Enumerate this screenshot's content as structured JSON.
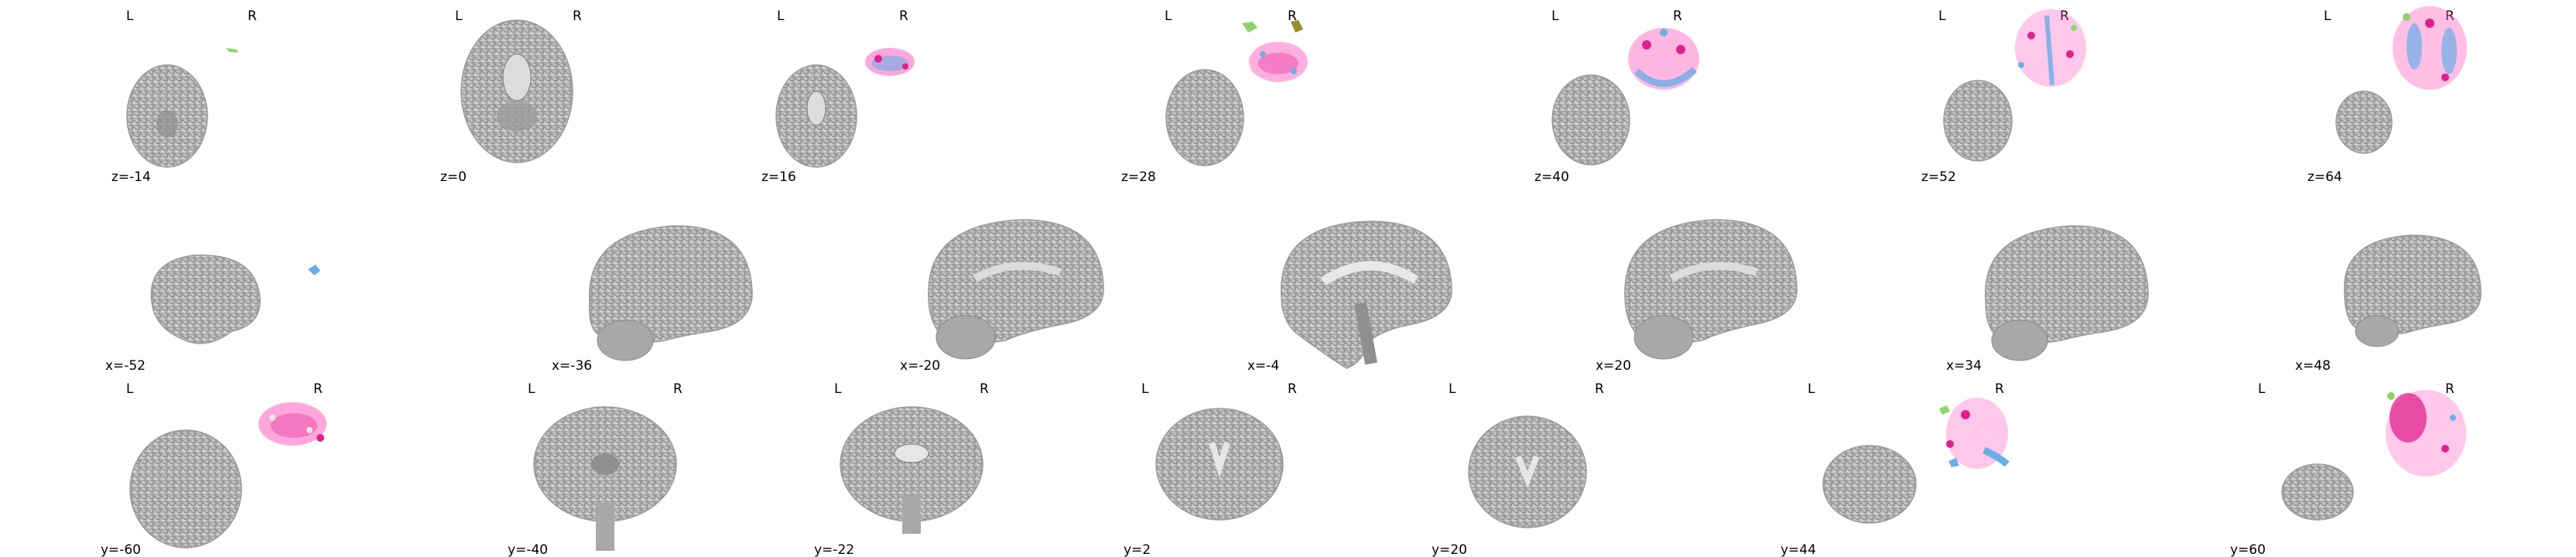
{
  "colors": {
    "background": "#ffffff",
    "brain_gray": "#b8b8b8",
    "overlay_pink": "#ff5fbf",
    "overlay_magenta": "#e0208f",
    "overlay_blue": "#6aaee8",
    "overlay_green": "#8fd46a",
    "overlay_olive": "#9a8d2a"
  },
  "rows": {
    "axial": {
      "orientation_left": "L",
      "orientation_right": "R",
      "panels": [
        {
          "coord": "z=-14",
          "overlay": "sparse-green"
        },
        {
          "coord": "z=0",
          "overlay": "none"
        },
        {
          "coord": "z=16",
          "overlay": "pink-blue"
        },
        {
          "coord": "z=28",
          "overlay": "pink-green-olive"
        },
        {
          "coord": "z=40",
          "overlay": "pink-blue"
        },
        {
          "coord": "z=52",
          "overlay": "pink-blue"
        },
        {
          "coord": "z=64",
          "overlay": "pink-blue-dense"
        }
      ]
    },
    "sagittal": {
      "panels": [
        {
          "coord": "x=-52",
          "overlay": "blue-speck"
        },
        {
          "coord": "x=-36",
          "overlay": "none"
        },
        {
          "coord": "x=-20",
          "overlay": "none"
        },
        {
          "coord": "x=-4",
          "overlay": "none"
        },
        {
          "coord": "x=20",
          "overlay": "none"
        },
        {
          "coord": "x=34",
          "overlay": "none"
        },
        {
          "coord": "x=48",
          "overlay": "none"
        }
      ]
    },
    "coronal": {
      "orientation_left": "L",
      "orientation_right": "R",
      "panels": [
        {
          "coord": "y=-60",
          "overlay": "pink-dense"
        },
        {
          "coord": "y=-40",
          "overlay": "none"
        },
        {
          "coord": "y=-22",
          "overlay": "none"
        },
        {
          "coord": "y=2",
          "overlay": "none"
        },
        {
          "coord": "y=20",
          "overlay": "none"
        },
        {
          "coord": "y=44",
          "overlay": "pink-blue-green"
        },
        {
          "coord": "y=60",
          "overlay": "pink-magenta-dense"
        }
      ]
    }
  }
}
